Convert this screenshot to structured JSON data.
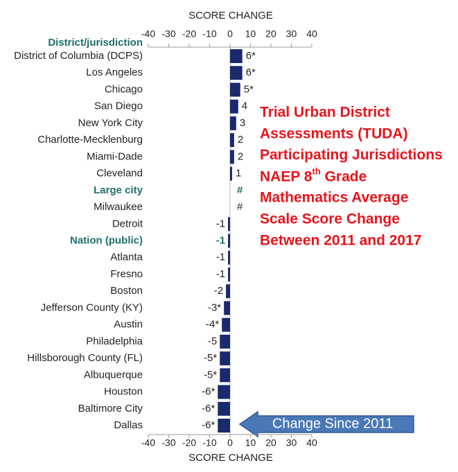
{
  "chart_data": {
    "type": "bar",
    "orientation": "horizontal",
    "x_label_top": "SCORE CHANGE",
    "x_label_bottom": "SCORE CHANGE",
    "category_header": "District/jurisdiction",
    "categories": [
      "District of Columbia (DCPS)",
      "Los Angeles",
      "Chicago",
      "San Diego",
      "New York City",
      "Charlotte-Mecklenburg",
      "Miami-Dade",
      "Cleveland",
      "Large city",
      "Milwaukee",
      "Detroit",
      "Nation (public)",
      "Atlanta",
      "Fresno",
      "Boston",
      "Jefferson County (KY)",
      "Austin",
      "Philadelphia",
      "Hillsborough County (FL)",
      "Albuquerque",
      "Houston",
      "Baltimore City",
      "Dallas"
    ],
    "values": [
      6,
      6,
      5,
      4,
      3,
      2,
      2,
      1,
      0,
      0,
      -1,
      -1,
      -1,
      -1,
      -2,
      -3,
      -4,
      -5,
      -5,
      -5,
      -6,
      -6,
      -6
    ],
    "value_labels": [
      "6*",
      "6*",
      "5*",
      "4",
      "3",
      "2",
      "2",
      "1",
      "#",
      "#",
      "-1",
      "-1",
      "-1",
      "-1",
      "-2",
      "-3*",
      "-4*",
      "-5",
      "-5*",
      "-5*",
      "-6*",
      "-6*",
      "-6*"
    ],
    "highlighted": [
      false,
      false,
      false,
      false,
      false,
      false,
      false,
      false,
      true,
      false,
      false,
      true,
      false,
      false,
      false,
      false,
      false,
      false,
      false,
      false,
      false,
      false,
      false
    ],
    "color": "#1b2a6b",
    "highlight_color": "#1d6f6a",
    "xlim": [
      -40,
      40
    ],
    "xticks": [
      -40,
      -30,
      -20,
      -10,
      0,
      10,
      20,
      30,
      40
    ],
    "annotation": [
      "Trial Urban District",
      "Assessments (TUDA)",
      "Participating Jurisdictions",
      [
        "NAEP 8",
        "th",
        " Grade"
      ],
      "Mathematics Average",
      "Scale Score Change",
      "Between 2011 and 2017"
    ],
    "annotation_color": "#e8141c",
    "callout": "Change Since 2011"
  }
}
